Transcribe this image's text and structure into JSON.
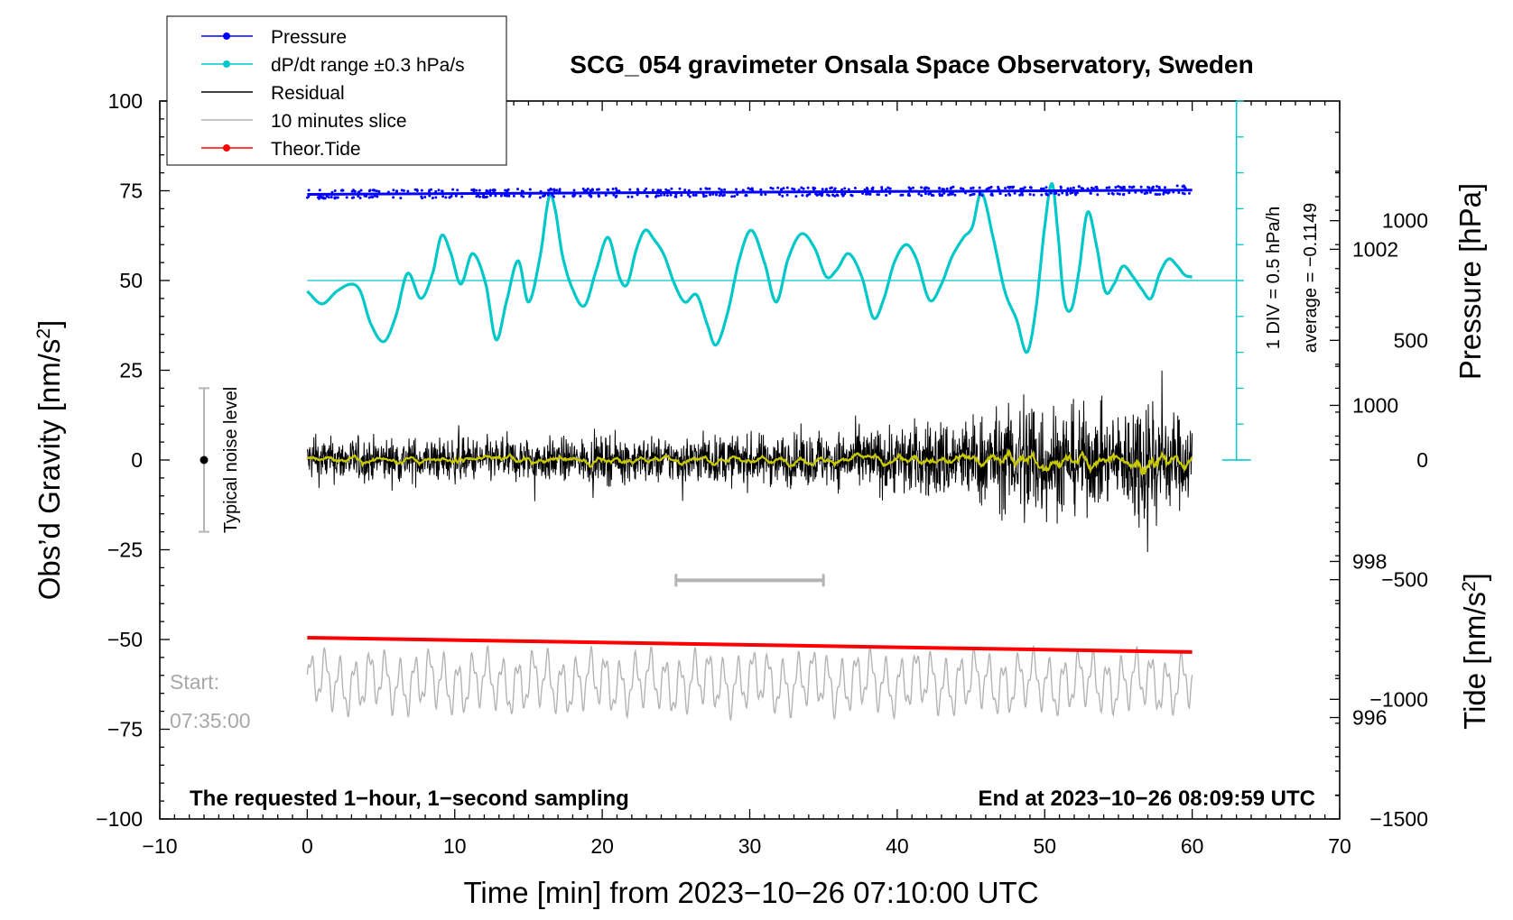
{
  "chart_data": {
    "type": "line",
    "title": "SCG_054 gravimeter Onsala Space Observatory, Sweden",
    "xlabel": "Time [min] from 2023−10−26 07:10:00 UTC",
    "ylabel": "Obs’d Gravity [nm/s",
    "ylabel_sup": "2",
    "ylabel_close": "]",
    "y2label": "Pressure [hPa]",
    "y3label": "Tide [nm/s",
    "y3label_sup": "2",
    "y3label_close": "]",
    "xlim": [
      -10,
      70
    ],
    "ylim": [
      -100,
      100
    ],
    "x_ticks": [
      -10,
      0,
      10,
      20,
      30,
      40,
      50,
      60,
      70
    ],
    "x_tick_labels": [
      "−10",
      "0",
      "10",
      "20",
      "30",
      "40",
      "50",
      "60",
      "70"
    ],
    "y_ticks": [
      -100,
      -75,
      -50,
      -25,
      0,
      25,
      50,
      75,
      100
    ],
    "y_tick_labels": [
      "−100",
      "−75",
      "−50",
      "−25",
      "0",
      "25",
      "50",
      "75",
      "100"
    ],
    "pressure_axis": {
      "ticks": [
        996,
        998,
        1000,
        1002
      ],
      "tick_labels": [
        "996",
        "998",
        "1000",
        "1002"
      ],
      "range_hpa": [
        994.7,
        1003.9
      ]
    },
    "tide_axis": {
      "ticks": [
        -1500,
        -1000,
        -500,
        0,
        500,
        1000
      ],
      "tick_labels": [
        "−1500",
        "−1000",
        "−500",
        "0",
        "500",
        "1000"
      ],
      "range": [
        -1500,
        1500
      ]
    },
    "legend": [
      {
        "name": "Pressure",
        "color": "#0000ff",
        "marker": true
      },
      {
        "name": "dP/dt range ±0.3 hPa/s",
        "color": "#00c8c8",
        "marker": true
      },
      {
        "name": "Residual",
        "color": "#000000",
        "marker": false
      },
      {
        "name": "10 minutes slice",
        "color": "#b4b4b4",
        "marker": false
      },
      {
        "name": "Theor.Tide",
        "color": "#ff0000",
        "marker": true
      }
    ],
    "series": [
      {
        "name": "Pressure",
        "color": "#0000ff",
        "x": [
          0,
          10,
          20,
          30,
          40,
          50,
          60
        ],
        "values": [
          74.0,
          74.2,
          74.4,
          74.6,
          74.8,
          75.0,
          75.2
        ]
      },
      {
        "name": "dP/dt",
        "color": "#00c8c8",
        "baseline": 50,
        "x": [
          0,
          1,
          2,
          3,
          3.6,
          4.3,
          5.2,
          6,
          6.8,
          7.7,
          8.5,
          9.1,
          9.7,
          10.4,
          11.2,
          12.1,
          12.8,
          13.5,
          14.3,
          15.0,
          15.8,
          16.4,
          16.8,
          17.3,
          18.0,
          18.8,
          19.6,
          20.4,
          21.2,
          21.7,
          22.3,
          22.9,
          23.5,
          24.2,
          24.9,
          25.6,
          26.4,
          27.1,
          27.7,
          28.5,
          29.3,
          30.1,
          31.0,
          31.8,
          32.6,
          33.5,
          34.4,
          35.2,
          35.9,
          36.7,
          37.6,
          38.4,
          39.1,
          39.8,
          40.6,
          41.3,
          42.2,
          43.0,
          43.7,
          44.5,
          45.1,
          45.7,
          46.5,
          47.3,
          48.1,
          48.8,
          49.4,
          50.0,
          50.5,
          50.9,
          51.3,
          51.8,
          52.3,
          52.9,
          53.5,
          54.1,
          54.7,
          55.3,
          56.0,
          56.6,
          57.2,
          57.8,
          58.4,
          59.0,
          59.5,
          60.0
        ],
        "values": [
          47.0,
          43.5,
          47.0,
          49.0,
          47.0,
          38.0,
          33.0,
          40.0,
          52.0,
          45.0,
          52.0,
          62.5,
          58.0,
          49.0,
          57.5,
          49.0,
          33.5,
          44.0,
          55.5,
          44.0,
          57.0,
          73.5,
          70.0,
          57.0,
          47.5,
          43.0,
          53.0,
          62.0,
          50.5,
          49.0,
          58.5,
          64.0,
          61.5,
          57.0,
          49.0,
          44.0,
          46.0,
          38.0,
          32.0,
          41.0,
          56.0,
          64.0,
          55.0,
          44.0,
          56.0,
          63.0,
          59.0,
          51.0,
          53.0,
          57.5,
          51.0,
          39.5,
          45.0,
          55.0,
          60.0,
          56.0,
          44.5,
          49.0,
          56.5,
          62.0,
          65.0,
          74.5,
          62.0,
          47.0,
          39.0,
          30.0,
          42.0,
          65.0,
          77.0,
          63.0,
          45.0,
          42.0,
          52.0,
          69.0,
          60.0,
          47.0,
          49.0,
          54.0,
          51.0,
          47.5,
          45.0,
          52.0,
          56.0,
          54.0,
          51.5,
          51.0
        ]
      },
      {
        "name": "Residual",
        "color": "#000000",
        "amplitude_profile": {
          "x": [
            0,
            20,
            35,
            40,
            45,
            48,
            49,
            50,
            55,
            57,
            58,
            60
          ],
          "amplitude": [
            5,
            5,
            6,
            8,
            10,
            12,
            20,
            13,
            10,
            18,
            12,
            9
          ]
        }
      },
      {
        "name": "Residual smoothed",
        "color": "#c8c800"
      },
      {
        "name": "10 minutes slice",
        "color": "#b4b4b4",
        "baseline": -62,
        "amplitude": 7
      },
      {
        "name": "Theor.Tide",
        "color": "#ff0000",
        "x": [
          0,
          60
        ],
        "values": [
          -49.5,
          -53.5
        ]
      }
    ],
    "annotations": {
      "noise_label": "Typical noise level",
      "noise_range": [
        -20,
        20
      ],
      "slice_bar_range_min": [
        25,
        35
      ],
      "slice_bar_level": -33.5,
      "start_label": "Start:",
      "start_time": "07:35:00",
      "div_label": "1 DIV = 0.5 hPa/h",
      "average_label": "average = −0.1149",
      "bottom_left": "The requested 1−hour, 1−second sampling",
      "bottom_right": "End at 2023−10−26 08:09:59 UTC"
    }
  }
}
